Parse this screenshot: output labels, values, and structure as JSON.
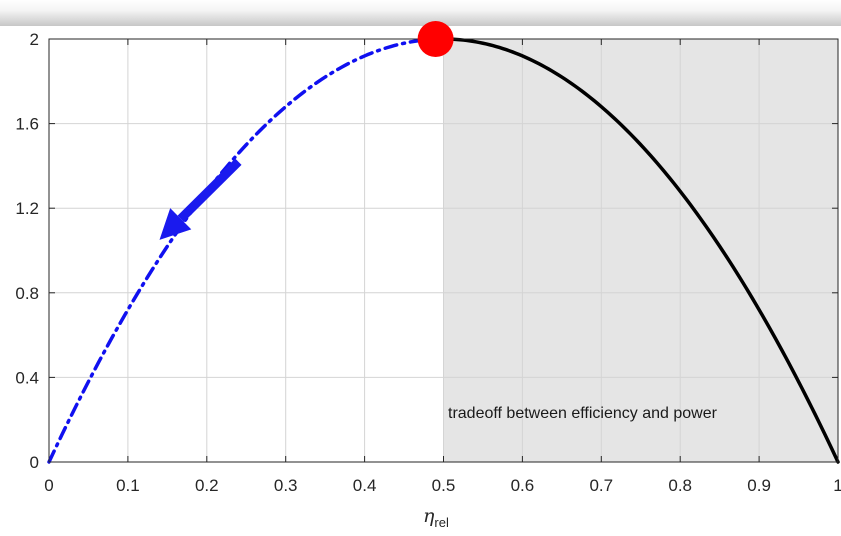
{
  "chart_data": {
    "type": "line",
    "title": "",
    "xlabel": "η",
    "xlabel_subscript": "rel",
    "ylabel": "",
    "xlim": [
      0,
      1
    ],
    "ylim": [
      0,
      2
    ],
    "x_ticks": [
      0,
      0.1,
      0.2,
      0.3,
      0.4,
      0.5,
      0.6,
      0.7,
      0.8,
      0.9,
      1
    ],
    "x_tick_labels": [
      "0",
      "0.1",
      "0.2",
      "0.3",
      "0.4",
      "0.5",
      "0.6",
      "0.7",
      "0.8",
      "0.9",
      "1"
    ],
    "y_ticks": [
      0,
      0.4,
      0.8,
      1.2,
      1.6,
      2
    ],
    "y_tick_labels": [
      "0",
      "0.4",
      "0.8",
      "1.2",
      "1.6",
      "2"
    ],
    "grid": true,
    "shaded_region": {
      "x_from": 0.5,
      "x_to": 1,
      "color": "#e5e5e5"
    },
    "annotation": "tradeoff between efficiency and power",
    "series": [
      {
        "style": "dash-dot",
        "color": "#1010f0",
        "x": [
          0,
          0.05,
          0.1,
          0.15,
          0.2,
          0.25,
          0.3,
          0.35,
          0.4,
          0.45,
          0.5
        ],
        "y": [
          0,
          0.38,
          0.72,
          1.02,
          1.28,
          1.5,
          1.68,
          1.82,
          1.92,
          1.98,
          2
        ]
      },
      {
        "style": "solid",
        "color": "#000000",
        "x": [
          0.5,
          0.55,
          0.6,
          0.65,
          0.7,
          0.75,
          0.8,
          0.85,
          0.9,
          0.95,
          1
        ],
        "y": [
          2,
          1.98,
          1.92,
          1.82,
          1.68,
          1.5,
          1.28,
          1.02,
          0.72,
          0.38,
          0
        ]
      }
    ],
    "marker": {
      "x": 0.49,
      "y": 2,
      "color": "#ff0000"
    },
    "arrow": {
      "from": [
        0.24,
        1.42
      ],
      "to": [
        0.14,
        1.05
      ],
      "color": "#1a1aee"
    }
  }
}
